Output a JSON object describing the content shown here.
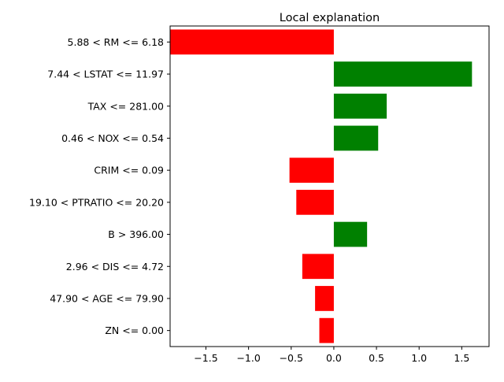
{
  "chart_data": {
    "type": "bar",
    "orientation": "horizontal",
    "title": "Local explanation",
    "xlabel": "",
    "ylabel": "",
    "categories": [
      "5.88 < RM <= 6.18",
      "7.44 < LSTAT <= 11.97",
      "TAX <= 281.00",
      "0.46 < NOX <= 0.54",
      "CRIM <= 0.09",
      "19.10 < PTRATIO <= 20.20",
      "B > 396.00",
      "2.96 < DIS <= 4.72",
      "47.90 < AGE <= 79.90",
      "ZN <= 0.00"
    ],
    "values": [
      -1.92,
      1.62,
      0.62,
      0.52,
      -0.52,
      -0.44,
      0.39,
      -0.37,
      -0.22,
      -0.17
    ],
    "xlim": [
      -1.92,
      1.82
    ],
    "xticks": [
      -1.5,
      -1.0,
      -0.5,
      0.0,
      0.5,
      1.0,
      1.5
    ],
    "xtick_labels": [
      "−1.5",
      "−1.0",
      "−0.5",
      "0.0",
      "0.5",
      "1.0",
      "1.5"
    ],
    "grid": false,
    "legend": "none",
    "colors": {
      "positive": "#008000",
      "negative": "#ff0000",
      "axes": "#000000"
    }
  }
}
